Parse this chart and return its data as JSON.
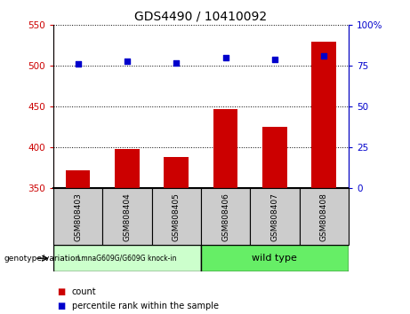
{
  "title": "GDS4490 / 10410092",
  "categories": [
    "GSM808403",
    "GSM808404",
    "GSM808405",
    "GSM808406",
    "GSM808407",
    "GSM808408"
  ],
  "bar_values": [
    372,
    398,
    388,
    447,
    425,
    530
  ],
  "percentile_values": [
    76,
    78,
    77,
    80,
    79,
    81
  ],
  "bar_color": "#cc0000",
  "percentile_color": "#0000cc",
  "ymin": 350,
  "ymax": 550,
  "yticks": [
    350,
    400,
    450,
    500,
    550
  ],
  "y2min": 0,
  "y2max": 100,
  "y2ticks": [
    0,
    25,
    50,
    75,
    100
  ],
  "left_tick_color": "#cc0000",
  "right_tick_color": "#0000cc",
  "group1_label": "LmnaG609G/G609G knock-in",
  "group2_label": "wild type",
  "group1_color": "#ccffcc",
  "group2_color": "#66ee66",
  "genotype_label": "genotype/variation",
  "legend_count_label": "count",
  "legend_percentile_label": "percentile rank within the sample",
  "xticklabel_bg": "#cccccc",
  "bar_width": 0.5
}
